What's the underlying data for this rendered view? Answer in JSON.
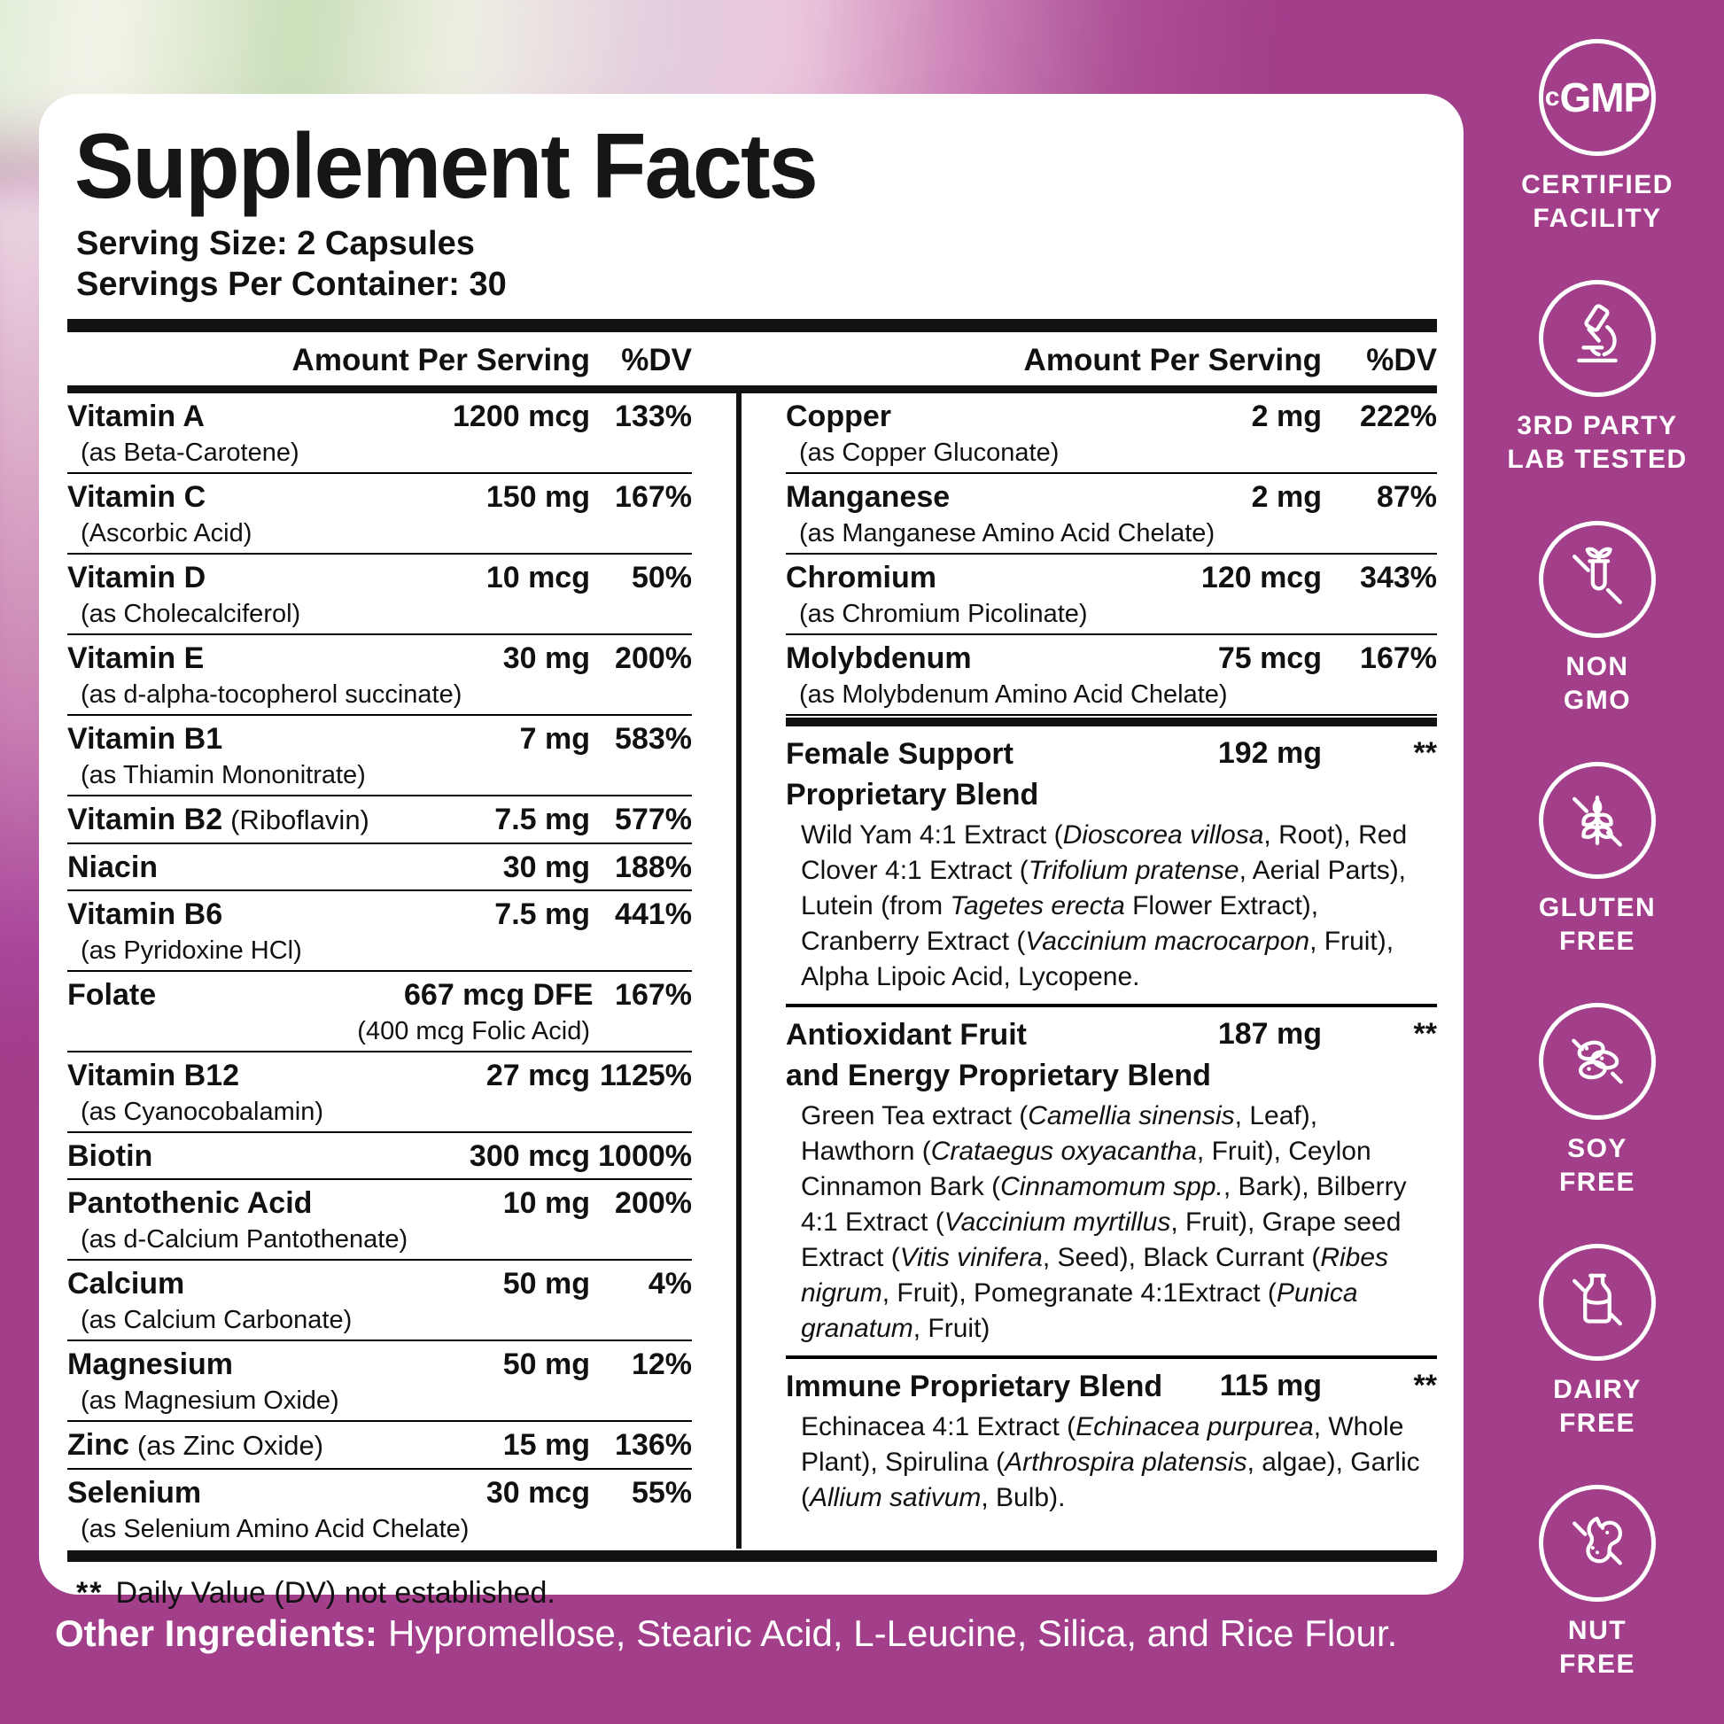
{
  "colors": {
    "magenta": "#A23E8A",
    "black": "#121212"
  },
  "panel": {
    "title": "Supplement Facts",
    "serving_size": "Serving Size: 2 Capsules",
    "servings_per_container": "Servings Per Container: 30",
    "columns": {
      "amount_header": "Amount Per Serving",
      "dv_header": "%DV"
    },
    "left_rows": [
      {
        "name": "Vitamin A",
        "sub": "(as Beta-Carotene)",
        "amount": "1200 mcg",
        "dv": "133%"
      },
      {
        "name": "Vitamin C",
        "sub": "(Ascorbic Acid)",
        "amount": "150 mg",
        "dv": "167%"
      },
      {
        "name": "Vitamin D",
        "sub": "(as Cholecalciferol)",
        "amount": "10 mcg",
        "dv": "50%"
      },
      {
        "name": "Vitamin E",
        "sub": "(as d-alpha-tocopherol succinate)",
        "amount": "30 mg",
        "dv": "200%"
      },
      {
        "name": "Vitamin B1",
        "sub": "(as Thiamin Mononitrate)",
        "amount": "7 mg",
        "dv": "583%"
      },
      {
        "name": "Vitamin B2",
        "note": "(Riboflavin)",
        "amount": "7.5 mg",
        "dv": "577%"
      },
      {
        "name": "Niacin",
        "amount": "30 mg",
        "dv": "188%"
      },
      {
        "name": "Vitamin B6",
        "sub": "(as Pyridoxine HCl)",
        "amount": "7.5 mg",
        "dv": "441%"
      },
      {
        "name": "Folate",
        "amount": "667 mcg DFE",
        "amount_sub": "(400 mcg Folic Acid)",
        "dv": "167%"
      },
      {
        "name": "Vitamin B12",
        "sub": "(as Cyanocobalamin)",
        "amount": "27 mcg",
        "dv": "1125%"
      },
      {
        "name": "Biotin",
        "amount": "300 mcg",
        "dv": "1000%"
      },
      {
        "name": "Pantothenic Acid",
        "sub": "(as d-Calcium Pantothenate)",
        "amount": "10 mg",
        "dv": "200%"
      },
      {
        "name": "Calcium",
        "sub": "(as Calcium Carbonate)",
        "amount": "50 mg",
        "dv": "4%"
      },
      {
        "name": "Magnesium",
        "sub": "(as Magnesium Oxide)",
        "amount": "50 mg",
        "dv": "12%"
      },
      {
        "name": "Zinc",
        "note": "(as Zinc Oxide)",
        "amount": "15 mg",
        "dv": "136%"
      },
      {
        "name": "Selenium",
        "sub": "(as Selenium Amino Acid Chelate)",
        "amount": "30 mcg",
        "dv": "55%"
      }
    ],
    "right_rows": [
      {
        "name": "Copper",
        "sub": "(as Copper Gluconate)",
        "amount": "2 mg",
        "dv": "222%"
      },
      {
        "name": "Manganese",
        "sub": "(as Manganese Amino Acid Chelate)",
        "amount": "2 mg",
        "dv": "87%"
      },
      {
        "name": "Chromium",
        "sub": "(as Chromium Picolinate)",
        "amount": "120 mcg",
        "dv": "343%"
      },
      {
        "name": "Molybdenum",
        "sub": "(as Molybdenum Amino Acid Chelate)",
        "amount": "75 mcg",
        "dv": "167%"
      }
    ],
    "blends": [
      {
        "name": "Female Support\nProprietary Blend",
        "amount": "192 mg",
        "dv": "**",
        "desc": [
          {
            "t": "Wild Yam 4:1 Extract ("
          },
          {
            "t": "Dioscorea villosa",
            "i": true
          },
          {
            "t": ", Root), Red Clover 4:1 Extract ("
          },
          {
            "t": "Trifolium pratense",
            "i": true
          },
          {
            "t": ", Aerial Parts), Lutein (from "
          },
          {
            "t": "Tagetes erecta",
            "i": true
          },
          {
            "t": " Flower Extract), Cranberry Extract ("
          },
          {
            "t": "Vaccinium macrocarpon",
            "i": true
          },
          {
            "t": ", Fruit), Alpha Lipoic Acid, Lycopene."
          }
        ]
      },
      {
        "name": "Antioxidant Fruit\nand Energy Proprietary Blend",
        "amount": "187 mg",
        "dv": "**",
        "desc": [
          {
            "t": "Green Tea extract ("
          },
          {
            "t": "Camellia sinensis",
            "i": true
          },
          {
            "t": ", Leaf), Hawthorn ("
          },
          {
            "t": "Crataegus oxyacantha",
            "i": true
          },
          {
            "t": ", Fruit), Ceylon Cinnamon Bark ("
          },
          {
            "t": "Cinnamomum spp.",
            "i": true
          },
          {
            "t": ", Bark), Bilberry 4:1 Extract ("
          },
          {
            "t": "Vaccinium myrtillus",
            "i": true
          },
          {
            "t": ", Fruit), Grape seed Extract ("
          },
          {
            "t": "Vitis vinifera",
            "i": true
          },
          {
            "t": ", Seed), Black Currant ("
          },
          {
            "t": "Ribes nigrum",
            "i": true
          },
          {
            "t": ", Fruit), Pomegranate 4:1Extract ("
          },
          {
            "t": "Punica granatum",
            "i": true
          },
          {
            "t": ", Fruit)"
          }
        ]
      },
      {
        "name": "Immune Proprietary Blend",
        "amount": "115 mg",
        "dv": "**",
        "desc": [
          {
            "t": "Echinacea 4:1 Extract ("
          },
          {
            "t": "Echinacea purpurea",
            "i": true
          },
          {
            "t": ", Whole Plant), Spirulina ("
          },
          {
            "t": "Arthrospira platensis",
            "i": true
          },
          {
            "t": ", algae), Garlic ("
          },
          {
            "t": "Allium sativum",
            "i": true
          },
          {
            "t": ", Bulb)."
          }
        ]
      }
    ],
    "footnote_stars": "**",
    "footnote": "Daily Value (DV) not established."
  },
  "other_ingredients": {
    "label": "Other Ingredients:",
    "text": "Hypromellose, Stearic Acid, L-Leucine, Silica, and Rice Flour."
  },
  "badges": [
    {
      "icon": "cgmp-icon",
      "icon_small": "c",
      "icon_big": "GMP",
      "label": "CERTIFIED\nFACILITY"
    },
    {
      "icon": "microscope-icon",
      "label": "3RD PARTY\nLAB TESTED"
    },
    {
      "icon": "non-gmo-icon",
      "label": "NON\nGMO"
    },
    {
      "icon": "gluten-free-icon",
      "label": "GLUTEN\nFREE"
    },
    {
      "icon": "soy-free-icon",
      "label": "SOY\nFREE"
    },
    {
      "icon": "dairy-free-icon",
      "label": "DAIRY\nFREE"
    },
    {
      "icon": "nut-free-icon",
      "label": "NUT\nFREE"
    }
  ]
}
